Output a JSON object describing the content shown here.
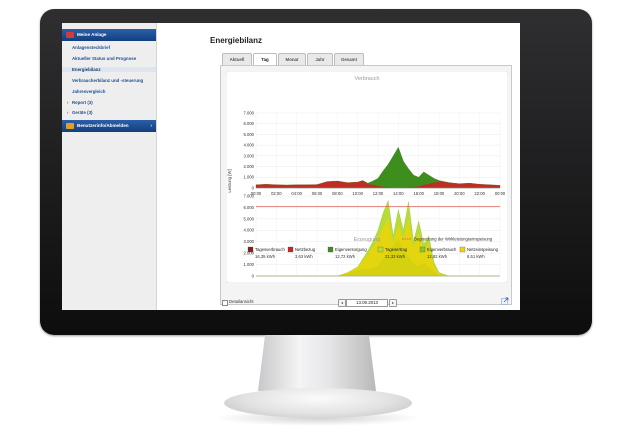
{
  "sidebar": {
    "header": "Meine Anlage",
    "items": [
      {
        "label": "Anlagensteckbrief",
        "prefix": ""
      },
      {
        "label": "Aktueller Status und Prognose",
        "prefix": ""
      },
      {
        "label": "Energiebilanz",
        "prefix": ""
      },
      {
        "label": "Verbraucherbilanz und -steuerung",
        "prefix": ""
      },
      {
        "label": "Jahresvergleich",
        "prefix": ""
      },
      {
        "label": "Report (3)",
        "prefix": "›"
      },
      {
        "label": "Geräte (3)",
        "prefix": "›"
      }
    ],
    "user_header": "Benutzerinfo/Abmelden",
    "user_chevron": "›"
  },
  "main": {
    "title": "Energiebilanz",
    "tabs": [
      {
        "label": "Aktuell"
      },
      {
        "label": "Tag"
      },
      {
        "label": "Monat"
      },
      {
        "label": "Jahr"
      },
      {
        "label": "Gesamt"
      }
    ],
    "active_tab": "Tag"
  },
  "footer": {
    "detail_label": "Detailansicht",
    "date": "13.09.2013",
    "prev_label": "◂",
    "next_label": "▸"
  },
  "legend": [
    {
      "label": "Tagesverbrauch",
      "value": "16,35 kWh",
      "color": "#8b1a1a"
    },
    {
      "label": "Netzbezug",
      "value": "3,63 kWh",
      "color": "#cc2222"
    },
    {
      "label": "Eigenversorgung",
      "value": "12,72 kWh",
      "color": "#3e8e1e"
    },
    {
      "label": "Tagesertrag",
      "value": "21,33 kWh",
      "color": "#b7dc3a"
    },
    {
      "label": "Eigenverbrauch",
      "value": "12,82 kWh",
      "color": "#7ec63a"
    },
    {
      "label": "Netzeinspeisung",
      "value": "8,51 kWh",
      "color": "#f3d400"
    }
  ],
  "chart_data": {
    "type": "area",
    "title_top": "Verbrauch",
    "title_bottom": "Erzeugung",
    "ylabel": "Leistung [W]",
    "limit_label": "Begrenzung der Wirkleistungseinspeisung",
    "x_ticks": [
      "00:00",
      "02:00",
      "04:00",
      "06:00",
      "08:00",
      "10:00",
      "12:00",
      "14:00",
      "16:00",
      "18:00",
      "20:00",
      "22:00",
      "00:00"
    ],
    "y_ticks_top": [
      "7.000",
      "6.000",
      "5.000",
      "4.000",
      "3.000",
      "2.000",
      "1.000",
      "0"
    ],
    "y_ticks_bottom": [
      "7.000",
      "6.000",
      "5.000",
      "4.000",
      "3.000",
      "2.000",
      "1.000",
      "0"
    ],
    "ylim": [
      0,
      7000
    ],
    "limit_value": 6100,
    "x_hours": [
      0,
      1,
      2,
      3,
      4,
      5,
      6,
      7,
      8,
      9,
      10,
      10.5,
      11,
      11.5,
      12,
      12.5,
      13,
      13.5,
      14,
      14.5,
      15,
      15.5,
      16,
      16.5,
      17,
      17.5,
      18,
      19,
      20,
      21,
      22,
      23,
      24
    ],
    "consumption": [
      300,
      350,
      300,
      280,
      300,
      300,
      320,
      600,
      650,
      500,
      550,
      700,
      450,
      650,
      900,
      1600,
      2200,
      3000,
      3800,
      2500,
      1800,
      1200,
      1000,
      1500,
      1200,
      900,
      700,
      500,
      400,
      450,
      350,
      300,
      250
    ],
    "grid_import": [
      300,
      350,
      300,
      280,
      300,
      300,
      320,
      600,
      650,
      500,
      550,
      700,
      350,
      300,
      200,
      100,
      80,
      60,
      50,
      60,
      80,
      100,
      150,
      300,
      400,
      500,
      600,
      500,
      400,
      450,
      350,
      300,
      250
    ],
    "generation": [
      0,
      0,
      0,
      0,
      0,
      0,
      0,
      0,
      0,
      300,
      800,
      1500,
      2200,
      3000,
      4000,
      5500,
      6600,
      3500,
      5800,
      4000,
      6500,
      3000,
      4800,
      2800,
      3500,
      1200,
      300,
      0,
      0,
      0,
      0,
      0,
      0
    ],
    "self_consumption": [
      0,
      0,
      0,
      0,
      0,
      0,
      0,
      0,
      0,
      250,
      500,
      600,
      600,
      700,
      900,
      1500,
      2100,
      2700,
      3200,
      2300,
      1700,
      1100,
      850,
      1200,
      800,
      400,
      100,
      0,
      0,
      0,
      0,
      0,
      0
    ],
    "feed_in": [
      0,
      0,
      0,
      0,
      0,
      0,
      0,
      0,
      0,
      300,
      700,
      1300,
      1900,
      2500,
      3300,
      4200,
      5000,
      2800,
      4500,
      3200,
      5000,
      2500,
      3800,
      2300,
      2800,
      900,
      200,
      0,
      0,
      0,
      0,
      0,
      0
    ]
  }
}
